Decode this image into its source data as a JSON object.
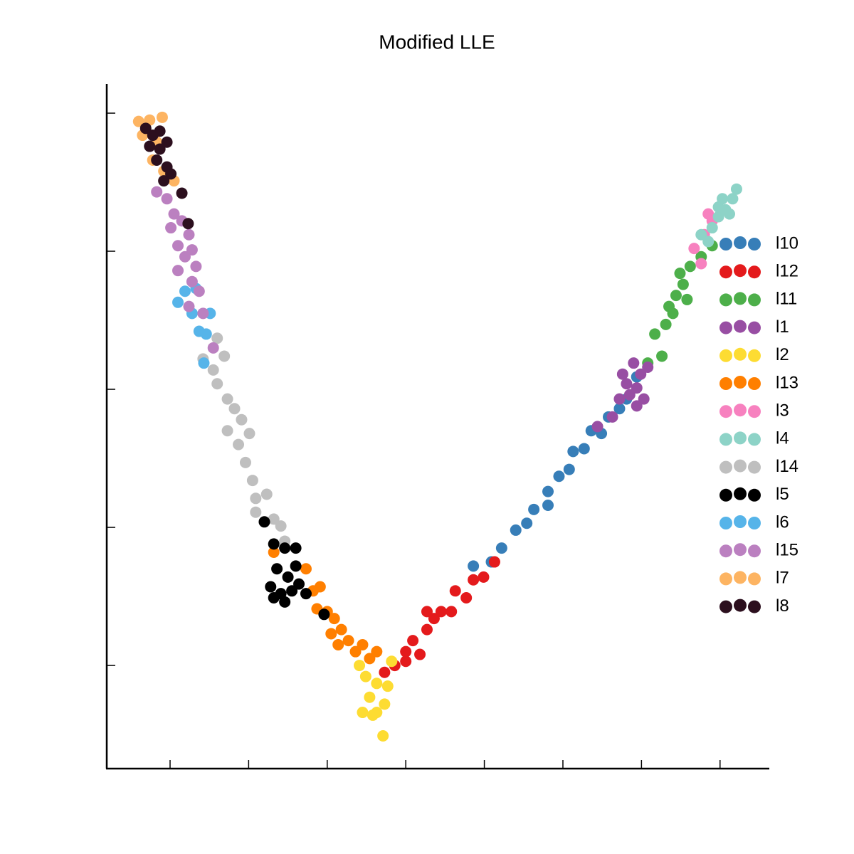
{
  "chart_data": {
    "type": "scatter",
    "title": "Modified LLE",
    "xlim": [
      -0.806,
      7.618
    ],
    "ylim": [
      -0.747,
      4.201
    ],
    "xticks": [
      0,
      1,
      2,
      3,
      4,
      5,
      6,
      7
    ],
    "yticks": [
      0,
      1,
      2,
      3,
      4
    ],
    "legend": "right",
    "series": [
      {
        "name": "l10",
        "color": "#377eb8",
        "x": [
          3.86,
          4.09,
          4.22,
          4.4,
          4.54,
          4.63,
          4.81,
          4.81,
          4.95,
          5.08,
          5.13,
          5.27,
          5.36,
          5.49,
          5.58,
          5.72,
          5.81,
          5.94
        ],
        "values": [
          0.72,
          0.75,
          0.85,
          0.98,
          1.03,
          1.13,
          1.26,
          1.16,
          1.37,
          1.42,
          1.55,
          1.57,
          1.7,
          1.68,
          1.8,
          1.86,
          1.93,
          2.09
        ]
      },
      {
        "name": "l12",
        "color": "#e41a1c",
        "x": [
          2.73,
          2.86,
          3.0,
          3.0,
          3.09,
          3.18,
          3.27,
          3.27,
          3.36,
          3.45,
          3.58,
          3.63,
          3.77,
          3.86,
          3.99,
          4.13
        ],
        "values": [
          -0.05,
          0,
          0.1,
          0.03,
          0.18,
          0.08,
          0.26,
          0.39,
          0.34,
          0.39,
          0.39,
          0.54,
          0.49,
          0.62,
          0.64,
          0.75
        ]
      },
      {
        "name": "l11",
        "color": "#4daf4a",
        "x": [
          6.08,
          6.26,
          6.17,
          6.31,
          6.4,
          6.35,
          6.44,
          6.58,
          6.53,
          6.49,
          6.62,
          6.76,
          6.9
        ],
        "values": [
          2.19,
          2.24,
          2.4,
          2.47,
          2.55,
          2.6,
          2.68,
          2.65,
          2.76,
          2.84,
          2.89,
          2.96,
          3.04
        ]
      },
      {
        "name": "l1",
        "color": "#984ea3",
        "x": [
          5.44,
          5.63,
          5.72,
          5.76,
          5.81,
          5.85,
          5.9,
          5.94,
          5.94,
          5.99,
          6.03,
          6.08
        ],
        "values": [
          1.73,
          1.8,
          1.93,
          2.11,
          2.04,
          1.96,
          2.19,
          2.01,
          1.88,
          2.11,
          1.93,
          2.16
        ]
      },
      {
        "name": "l2",
        "color": "#fddc32",
        "x": [
          2.41,
          2.45,
          2.49,
          2.54,
          2.58,
          2.63,
          2.63,
          2.71,
          2.73,
          2.77,
          2.82
        ],
        "values": [
          0,
          -0.34,
          -0.08,
          -0.23,
          -0.36,
          -0.13,
          -0.34,
          -0.51,
          -0.28,
          -0.15,
          0.03
        ]
      },
      {
        "name": "l13",
        "color": "#ff7f00",
        "x": [
          1.32,
          1.73,
          1.82,
          1.87,
          1.91,
          2.0,
          2.05,
          2.09,
          2.14,
          2.18,
          2.27,
          2.36,
          2.45,
          2.54,
          2.63
        ],
        "values": [
          0.82,
          0.7,
          0.54,
          0.41,
          0.57,
          0.39,
          0.23,
          0.34,
          0.15,
          0.26,
          0.18,
          0.1,
          0.15,
          0.05,
          0.1
        ]
      },
      {
        "name": "l3",
        "color": "#f781bf",
        "x": [
          6.67,
          6.76,
          6.8,
          6.85,
          6.9
        ],
        "values": [
          3.02,
          2.91,
          3.12,
          3.27,
          3.22
        ]
      },
      {
        "name": "l4",
        "color": "#8dd3c7",
        "x": [
          6.76,
          6.85,
          6.9,
          6.98,
          6.98,
          7.03,
          7.07,
          7.12,
          7.16,
          7.21
        ],
        "values": [
          3.12,
          3.07,
          3.17,
          3.25,
          3.32,
          3.38,
          3.3,
          3.27,
          3.38,
          3.45
        ]
      },
      {
        "name": "l14",
        "color": "#bfbfbf",
        "x": [
          0.42,
          0.55,
          0.6,
          0.6,
          0.69,
          0.73,
          0.82,
          0.91,
          0.73,
          1.01,
          0.87,
          0.96,
          1.05,
          1.09,
          1.23,
          1.09,
          1.32,
          1.41,
          1.46
        ],
        "values": [
          2.22,
          2.14,
          2.04,
          2.37,
          2.24,
          1.93,
          1.86,
          1.78,
          1.7,
          1.68,
          1.6,
          1.47,
          1.34,
          1.21,
          1.24,
          1.11,
          1.06,
          1.01,
          0.9
        ]
      },
      {
        "name": "l5",
        "color": "#000000",
        "x": [
          1.2,
          1.32,
          1.46,
          1.6,
          1.36,
          1.5,
          1.28,
          1.41,
          1.64,
          1.73,
          1.55,
          1.32,
          1.46,
          1.96,
          1.6
        ],
        "values": [
          1.04,
          0.88,
          0.85,
          0.85,
          0.7,
          0.64,
          0.57,
          0.52,
          0.59,
          0.52,
          0.54,
          0.49,
          0.46,
          0.37,
          0.72
        ]
      },
      {
        "name": "l6",
        "color": "#56b4e9",
        "x": [
          0.1,
          0.19,
          0.28,
          0.33,
          0.37,
          0.46,
          0.43,
          0.51
        ],
        "values": [
          2.63,
          2.71,
          2.55,
          2.73,
          2.42,
          2.4,
          2.19,
          2.55
        ]
      },
      {
        "name": "l15",
        "color": "#bb80c0",
        "x": [
          -0.17,
          -0.04,
          0.05,
          0.01,
          0.15,
          0.24,
          0.1,
          0.28,
          0.19,
          0.33,
          0.1,
          0.28,
          0.37,
          0.24,
          0.42,
          0.55
        ],
        "values": [
          3.43,
          3.38,
          3.27,
          3.17,
          3.22,
          3.12,
          3.04,
          3.01,
          2.96,
          2.89,
          2.86,
          2.78,
          2.71,
          2.6,
          2.55,
          2.3
        ]
      },
      {
        "name": "l7",
        "color": "#fdb462",
        "x": [
          -0.4,
          -0.26,
          -0.1,
          -0.35,
          -0.17,
          -0.22,
          -0.08,
          0.05
        ],
        "values": [
          3.94,
          3.95,
          3.97,
          3.84,
          3.79,
          3.66,
          3.58,
          3.51
        ]
      },
      {
        "name": "l8",
        "color": "#2c0f1e",
        "x": [
          -0.31,
          -0.22,
          -0.13,
          -0.26,
          -0.13,
          -0.04,
          -0.17,
          -0.04,
          -0.08,
          0.01,
          0.15,
          0.23
        ],
        "values": [
          3.89,
          3.84,
          3.87,
          3.76,
          3.74,
          3.79,
          3.66,
          3.61,
          3.51,
          3.56,
          3.42,
          3.2
        ]
      }
    ]
  }
}
